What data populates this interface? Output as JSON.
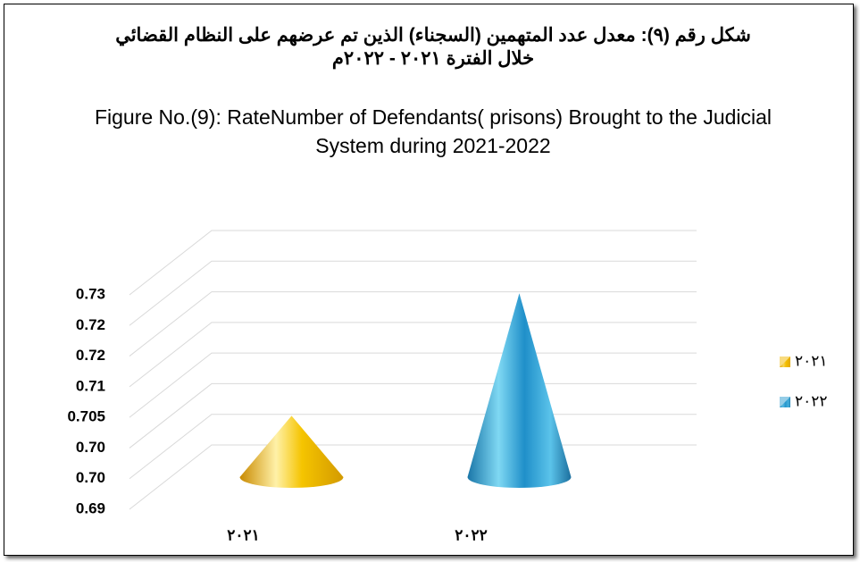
{
  "chart_data": {
    "type": "cone",
    "title": "شكل رقم (٩): معدل عدد المتهمين (السجناء) الذين تم عرضهم على النظام القضائي خلال الفترة ٢٠٢١ - ٢٠٢٢م",
    "subtitle": "Figure No.(9): RateNumber of Defendants( prisons) Brought to the Judicial System during 2021-2022",
    "categories": [
      "٢٠٢١",
      "٢٠٢٢"
    ],
    "series": [
      {
        "name": "٢٠٢١",
        "color": "#f2b800",
        "values": [
          0.7,
          null
        ]
      },
      {
        "name": "٢٠٢٢",
        "color": "#2b9bd0",
        "values": [
          null,
          0.72
        ]
      }
    ],
    "ylim": [
      0.69,
      0.725
    ],
    "yticks": [
      0.69,
      {
        "value": 0.695,
        "label": "0.70"
      },
      {
        "value": 0.7,
        "label": "0.70"
      },
      0.705,
      {
        "value": 0.71,
        "label": "0.71"
      },
      {
        "value": 0.715,
        "label": "0.72"
      },
      0.72,
      {
        "value": 0.725,
        "label": "0.73"
      }
    ],
    "grid": true,
    "legend": "right"
  }
}
